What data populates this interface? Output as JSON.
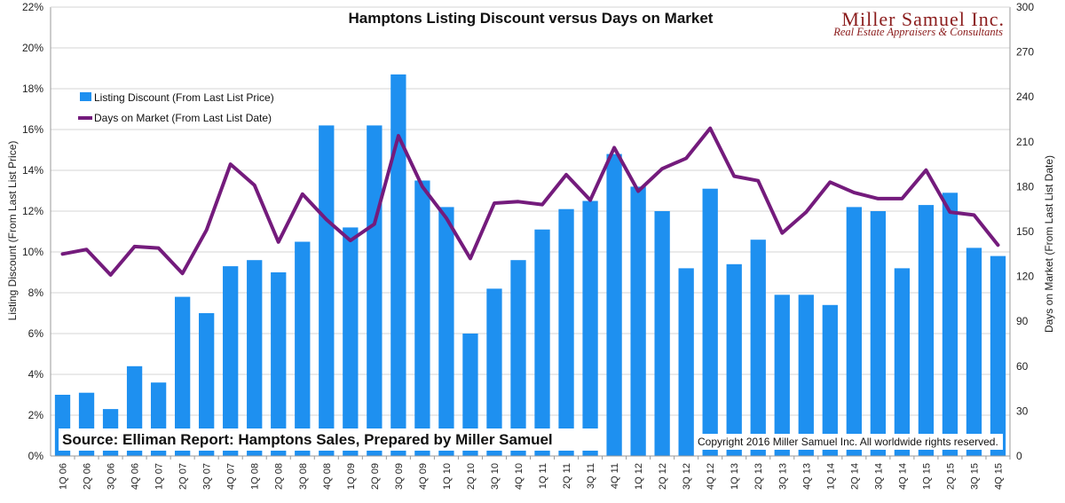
{
  "chart_data": {
    "type": "bar",
    "title": "Hamptons Listing Discount versus Days on Market",
    "categories": [
      "1Q 06",
      "2Q 06",
      "3Q 06",
      "4Q 06",
      "1Q 07",
      "2Q 07",
      "3Q 07",
      "4Q 07",
      "1Q 08",
      "2Q 08",
      "3Q 08",
      "4Q 08",
      "1Q 09",
      "2Q 09",
      "3Q 09",
      "4Q 09",
      "1Q 10",
      "2Q 10",
      "3Q 10",
      "4Q 10",
      "1Q 11",
      "2Q 11",
      "3Q 11",
      "4Q 11",
      "1Q 12",
      "2Q 12",
      "3Q 12",
      "4Q 12",
      "1Q 13",
      "2Q 13",
      "3Q 13",
      "4Q 13",
      "1Q 14",
      "2Q 14",
      "3Q 14",
      "4Q 14",
      "1Q 15",
      "2Q 15",
      "3Q 15",
      "4Q 15"
    ],
    "series": [
      {
        "name": "Listing Discount (From Last List Price)",
        "type": "bar",
        "axis": "left",
        "color": "#1e90f0",
        "values": [
          3.0,
          3.1,
          2.3,
          4.4,
          3.6,
          7.8,
          7.0,
          9.3,
          9.6,
          9.0,
          10.5,
          16.2,
          11.2,
          16.2,
          18.7,
          13.5,
          12.2,
          6.0,
          8.2,
          9.6,
          11.1,
          12.1,
          12.5,
          14.8,
          13.2,
          12.0,
          9.2,
          13.1,
          9.4,
          10.6,
          7.9,
          7.9,
          7.4,
          12.2,
          12.0,
          9.2,
          12.3,
          12.9,
          10.2,
          9.8
        ]
      },
      {
        "name": "Days on Market (From Last List Date)",
        "type": "line",
        "axis": "right",
        "color": "#741b7c",
        "values": [
          135,
          138,
          121,
          140,
          139,
          122,
          151,
          195,
          181,
          143,
          175,
          158,
          144,
          155,
          214,
          180,
          159,
          132,
          169,
          170,
          168,
          188,
          171,
          206,
          177,
          192,
          199,
          219,
          187,
          184,
          149,
          163,
          183,
          176,
          172,
          172,
          191,
          163,
          161,
          141
        ]
      }
    ],
    "y_left": {
      "label": "Listing Discount (From Last List Price)",
      "range": [
        0,
        22
      ],
      "ticks": [
        "0%",
        "2%",
        "4%",
        "6%",
        "8%",
        "10%",
        "12%",
        "14%",
        "16%",
        "18%",
        "20%",
        "22%"
      ]
    },
    "y_right": {
      "label": "Days on Market (From Last List Date)",
      "range": [
        0,
        300
      ],
      "ticks": [
        "0",
        "30",
        "60",
        "90",
        "120",
        "150",
        "180",
        "210",
        "240",
        "270",
        "300"
      ]
    },
    "grid": "horizontal",
    "legend_position": "top-left"
  },
  "branding": {
    "company": "Miller Samuel Inc.",
    "tagline": "Real Estate Appraisers & Consultants"
  },
  "source_note": "Source:  Elliman Report: Hamptons Sales, Prepared by Miller Samuel",
  "copyright_note": "Copyright 2016 Miller Samuel Inc.  All worldwide rights reserved."
}
